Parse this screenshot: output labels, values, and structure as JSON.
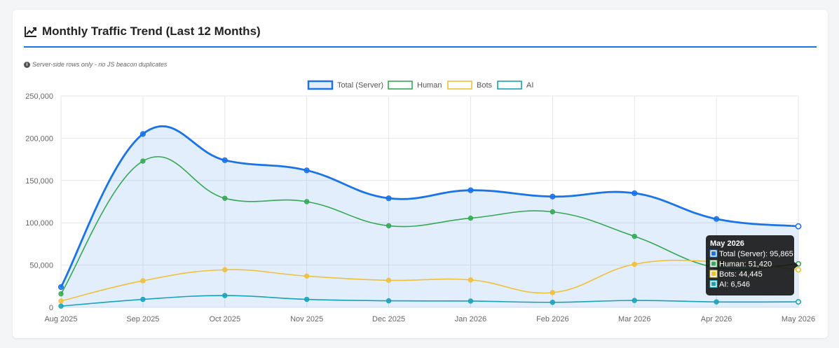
{
  "header": {
    "title": "Monthly Traffic Trend (Last 12 Months)",
    "note": "Server-side rows only - no JS beacon duplicates"
  },
  "chart_data": {
    "type": "line",
    "categories": [
      "Aug 2025",
      "Sep 2025",
      "Oct 2025",
      "Nov 2025",
      "Dec 2025",
      "Jan 2026",
      "Feb 2026",
      "Mar 2026",
      "Apr 2026",
      "May 2026"
    ],
    "ylim": [
      0,
      250000
    ],
    "yticks": [
      0,
      50000,
      100000,
      150000,
      200000,
      250000
    ],
    "ytick_labels": [
      "0",
      "50,000",
      "100,000",
      "150,000",
      "200,000",
      "250,000"
    ],
    "grid": true,
    "legend_position": "top",
    "series": [
      {
        "name": "Total (Server)",
        "color": "#1a73e8",
        "fill": true,
        "values": [
          24000,
          205000,
          174000,
          162000,
          129000,
          138500,
          131000,
          135000,
          104500,
          95865
        ]
      },
      {
        "name": "Human",
        "color": "#34a853",
        "fill": false,
        "values": [
          16000,
          173000,
          129000,
          125000,
          96500,
          105500,
          113000,
          84000,
          47000,
          51420
        ]
      },
      {
        "name": "Bots",
        "color": "#f0c038",
        "fill": false,
        "values": [
          7500,
          31500,
          44500,
          37000,
          32000,
          32500,
          17500,
          51000,
          54000,
          44445
        ]
      },
      {
        "name": "AI",
        "color": "#17a2b8",
        "fill": false,
        "values": [
          1500,
          9500,
          14000,
          9500,
          7800,
          7500,
          6000,
          8200,
          6500,
          6546
        ]
      }
    ],
    "tooltip": {
      "title": "May 2026",
      "lines": [
        "Total (Server): 95,865",
        "Human: 51,420",
        "Bots: 44,445",
        "AI: 6,546"
      ]
    }
  }
}
